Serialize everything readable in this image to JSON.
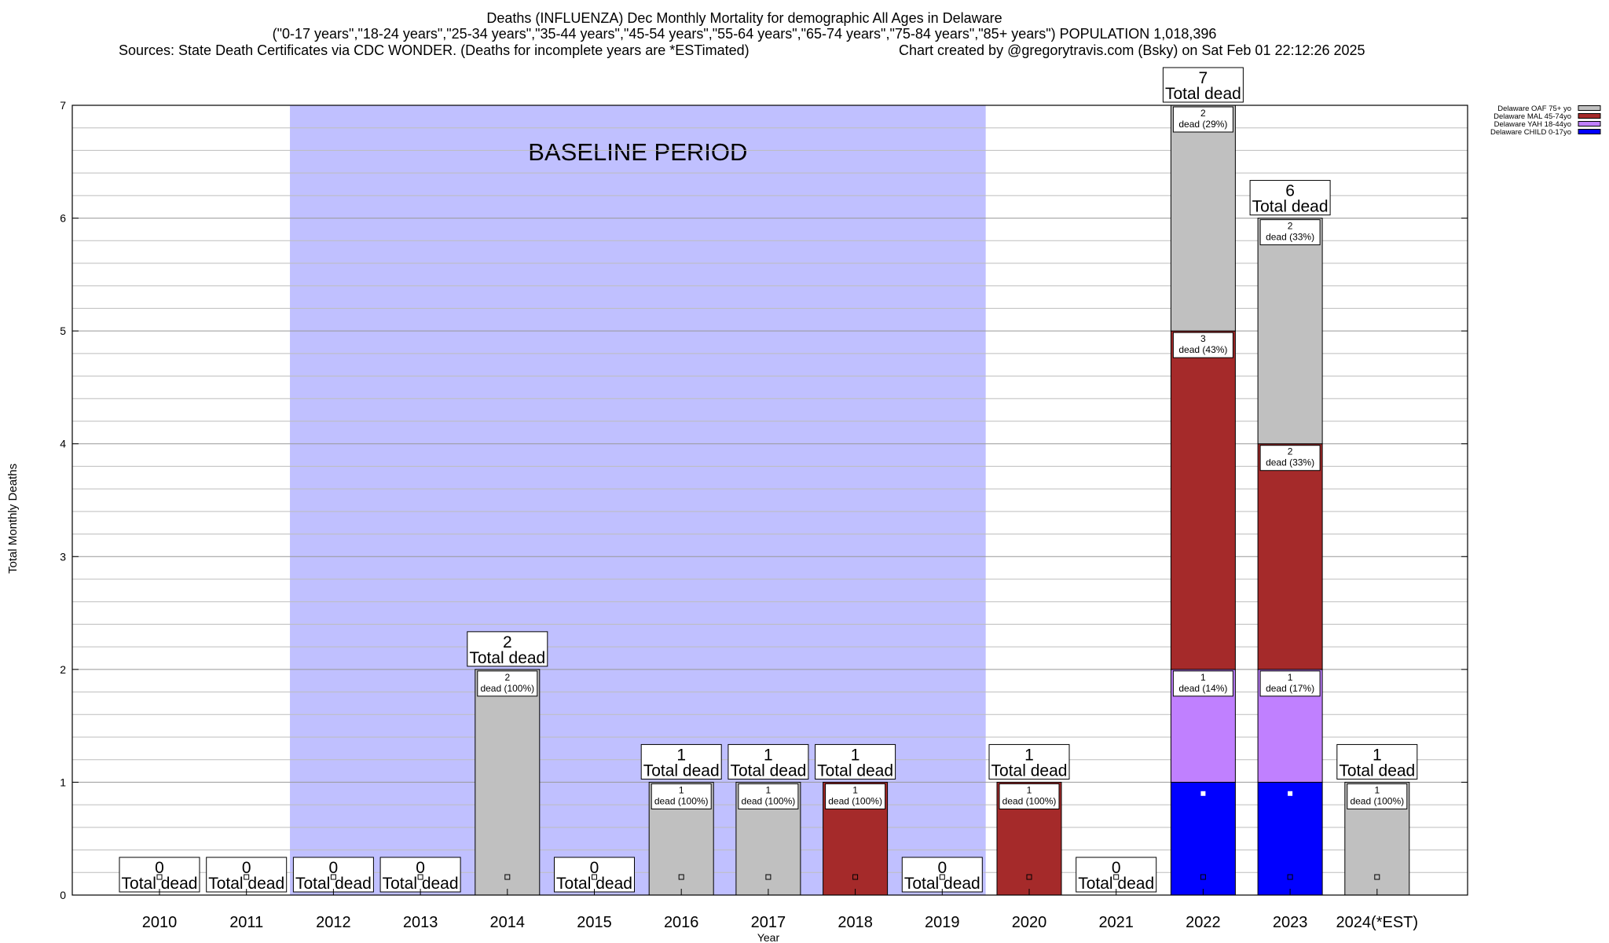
{
  "header": {
    "line1": "Deaths (INFLUENZA) Dec Monthly Mortality for demographic All Ages in Delaware",
    "line2": "(\"0-17 years\",\"18-24 years\",\"25-34 years\",\"35-44 years\",\"45-54 years\",\"55-64 years\",\"65-74 years\",\"75-84 years\",\"85+ years\") POPULATION 1,018,396",
    "line3_left": "Sources: State Death Certificates via CDC WONDER. (Deaths for incomplete years are *ESTimated)",
    "line3_right": "Chart created by @gregorytravis.com (Bsky) on Sat Feb 01 22:12:26 2025"
  },
  "chart_data": {
    "type": "bar",
    "stacked": true,
    "xlabel": "Year",
    "ylabel": "Total Monthly Deaths",
    "ylim": [
      0,
      7
    ],
    "yticks": [
      "0",
      "1",
      "2",
      "3",
      "4",
      "5",
      "6",
      "7"
    ],
    "grid": true,
    "legend_position": "top-right",
    "categories": [
      "2010",
      "2011",
      "2012",
      "2013",
      "2014",
      "2015",
      "2016",
      "2017",
      "2018",
      "2019",
      "2020",
      "2021",
      "2022",
      "2023",
      "2024(*EST)"
    ],
    "series": [
      {
        "name": "Delaware CHILD 0-17yo",
        "color": "#0000ff",
        "values": [
          0,
          0,
          0,
          0,
          0,
          0,
          0,
          0,
          0,
          0,
          0,
          0,
          1,
          1,
          0
        ]
      },
      {
        "name": "Delaware YAH 18-44yo",
        "color": "#c080ff",
        "values": [
          0,
          0,
          0,
          0,
          0,
          0,
          0,
          0,
          0,
          0,
          0,
          0,
          1,
          1,
          0
        ]
      },
      {
        "name": "Delaware MAL 45-74yo",
        "color": "#a52a2a",
        "values": [
          0,
          0,
          0,
          0,
          0,
          0,
          0,
          0,
          1,
          0,
          1,
          0,
          3,
          2,
          0
        ]
      },
      {
        "name": "Delaware OAF 75+ yo",
        "color": "#c0c0c0",
        "values": [
          0,
          0,
          0,
          0,
          2,
          0,
          1,
          1,
          0,
          0,
          0,
          0,
          2,
          2,
          1
        ]
      }
    ],
    "legend_order": [
      "Delaware OAF 75+ yo",
      "Delaware MAL 45-74yo",
      "Delaware YAH 18-44yo",
      "Delaware CHILD 0-17yo"
    ],
    "totals": [
      0,
      0,
      0,
      0,
      2,
      0,
      1,
      1,
      1,
      0,
      1,
      0,
      7,
      6,
      1
    ],
    "total_label_suffix": "Total dead",
    "segment_labels": [
      {
        "category": "2014",
        "series": "Delaware OAF 75+ yo",
        "count": "2",
        "text": "dead (100%)"
      },
      {
        "category": "2016",
        "series": "Delaware OAF 75+ yo",
        "count": "1",
        "text": "dead (100%)"
      },
      {
        "category": "2017",
        "series": "Delaware OAF 75+ yo",
        "count": "1",
        "text": "dead (100%)"
      },
      {
        "category": "2018",
        "series": "Delaware MAL 45-74yo",
        "count": "1",
        "text": "dead (100%)"
      },
      {
        "category": "2020",
        "series": "Delaware MAL 45-74yo",
        "count": "1",
        "text": "dead (100%)"
      },
      {
        "category": "2022",
        "series": "Delaware YAH 18-44yo",
        "count": "1",
        "text": "dead (14%)"
      },
      {
        "category": "2022",
        "series": "Delaware MAL 45-74yo",
        "count": "3",
        "text": "dead (43%)"
      },
      {
        "category": "2022",
        "series": "Delaware OAF 75+ yo",
        "count": "2",
        "text": "dead (29%)"
      },
      {
        "category": "2023",
        "series": "Delaware YAH 18-44yo",
        "count": "1",
        "text": "dead (17%)"
      },
      {
        "category": "2023",
        "series": "Delaware MAL 45-74yo",
        "count": "2",
        "text": "dead (33%)"
      },
      {
        "category": "2023",
        "series": "Delaware OAF 75+ yo",
        "count": "2",
        "text": "dead (33%)"
      },
      {
        "category": "2024(*EST)",
        "series": "Delaware OAF 75+ yo",
        "count": "1",
        "text": "dead (100%)"
      }
    ],
    "baseline": {
      "label": "BASELINE PERIOD",
      "from": "2012",
      "to": "2019",
      "color": "#c0c0ff"
    }
  }
}
